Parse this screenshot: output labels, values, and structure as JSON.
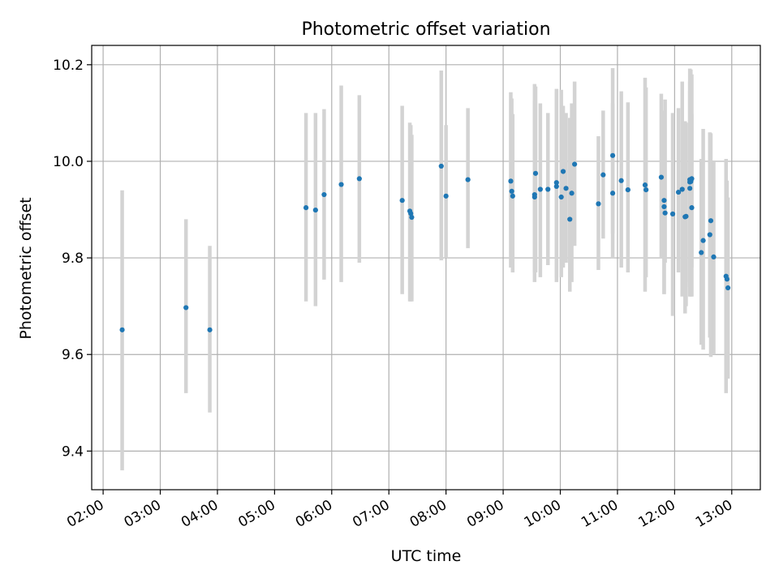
{
  "chart_data": {
    "type": "scatter",
    "title": "Photometric offset variation",
    "xlabel": "UTC time",
    "ylabel": "Photometric offset",
    "xlim": [
      "01:48",
      "13:30"
    ],
    "ylim": [
      9.32,
      10.24
    ],
    "grid": true,
    "x_ticks": [
      "02:00",
      "03:00",
      "04:00",
      "05:00",
      "06:00",
      "07:00",
      "08:00",
      "09:00",
      "10:00",
      "11:00",
      "12:00",
      "13:00"
    ],
    "y_ticks": [
      9.4,
      9.6,
      9.8,
      10.0,
      10.2
    ],
    "y_tick_labels": [
      "9.4",
      "9.6",
      "9.8",
      "10.0",
      "10.2"
    ],
    "colors": {
      "points": "#1f77b4",
      "errorbars": "#d3d3d3",
      "grid": "#b0b0b0"
    },
    "series": [
      {
        "x": [
          "02:20",
          "03:27",
          "03:52",
          "05:33",
          "05:43",
          "05:52",
          "06:10",
          "06:29",
          "07:14",
          "07:22",
          "07:23",
          "07:24",
          "07:55",
          "08:00",
          "08:23",
          "09:08",
          "09:09",
          "09:10",
          "09:33",
          "09:33",
          "09:34",
          "09:39",
          "09:47",
          "09:56",
          "09:56",
          "10:01",
          "10:03",
          "10:06",
          "10:10",
          "10:12",
          "10:15",
          "10:40",
          "10:45",
          "10:55",
          "10:55",
          "11:04",
          "11:11",
          "11:29",
          "11:30",
          "11:46",
          "11:49",
          "11:49",
          "11:50",
          "11:58",
          "12:04",
          "12:08",
          "12:11",
          "12:12",
          "12:16",
          "12:16",
          "12:16",
          "12:17",
          "12:17",
          "12:18",
          "12:18",
          "12:28",
          "12:30",
          "12:37",
          "12:38",
          "12:41",
          "12:54",
          "12:55",
          "12:56"
        ],
        "y": [
          9.651,
          9.697,
          9.651,
          9.904,
          9.899,
          9.931,
          9.952,
          9.964,
          9.919,
          9.897,
          9.892,
          9.884,
          9.99,
          9.928,
          9.962,
          9.959,
          9.938,
          9.928,
          9.926,
          9.931,
          9.975,
          9.942,
          9.942,
          9.948,
          9.956,
          9.926,
          9.979,
          9.944,
          9.88,
          9.934,
          9.994,
          9.912,
          9.972,
          10.012,
          9.934,
          9.96,
          9.941,
          9.951,
          9.941,
          9.967,
          9.919,
          9.906,
          9.893,
          9.891,
          9.936,
          9.942,
          9.885,
          9.886,
          9.962,
          9.957,
          9.944,
          9.958,
          9.961,
          9.964,
          9.904,
          9.811,
          9.836,
          9.848,
          9.877,
          9.802,
          9.762,
          9.756,
          9.738
        ],
        "err_low": [
          9.36,
          9.52,
          9.48,
          9.71,
          9.7,
          9.755,
          9.75,
          9.79,
          9.725,
          9.71,
          9.71,
          9.71,
          9.795,
          9.8,
          9.82,
          9.78,
          9.78,
          9.77,
          9.77,
          9.75,
          9.77,
          9.76,
          9.785,
          9.75,
          9.76,
          9.76,
          9.78,
          9.79,
          9.73,
          9.75,
          9.825,
          9.775,
          9.84,
          9.85,
          9.8,
          9.78,
          9.77,
          9.73,
          9.76,
          9.8,
          9.725,
          9.725,
          9.79,
          9.68,
          9.77,
          9.72,
          9.685,
          9.7,
          9.74,
          9.72,
          9.75,
          9.72,
          9.76,
          9.78,
          9.72,
          9.62,
          9.61,
          9.635,
          9.595,
          9.6,
          9.52,
          9.55,
          9.55
        ],
        "err_high": [
          9.94,
          9.88,
          9.825,
          10.1,
          10.1,
          10.108,
          10.157,
          10.137,
          10.115,
          10.08,
          10.075,
          10.055,
          10.188,
          10.075,
          10.11,
          10.143,
          10.13,
          10.098,
          10.125,
          10.16,
          10.155,
          10.12,
          10.1,
          10.15,
          10.145,
          10.148,
          10.115,
          10.1,
          10.09,
          10.12,
          10.165,
          10.052,
          10.105,
          10.193,
          10.12,
          10.145,
          10.122,
          10.173,
          10.153,
          10.14,
          10.105,
          10.082,
          10.128,
          10.1,
          10.11,
          10.165,
          10.083,
          10.08,
          10.192,
          10.165,
          10.145,
          10.19,
          10.175,
          10.18,
          10.098,
          10.005,
          10.067,
          10.06,
          10.058,
          10.0,
          10.005,
          9.96,
          9.925
        ]
      }
    ]
  }
}
